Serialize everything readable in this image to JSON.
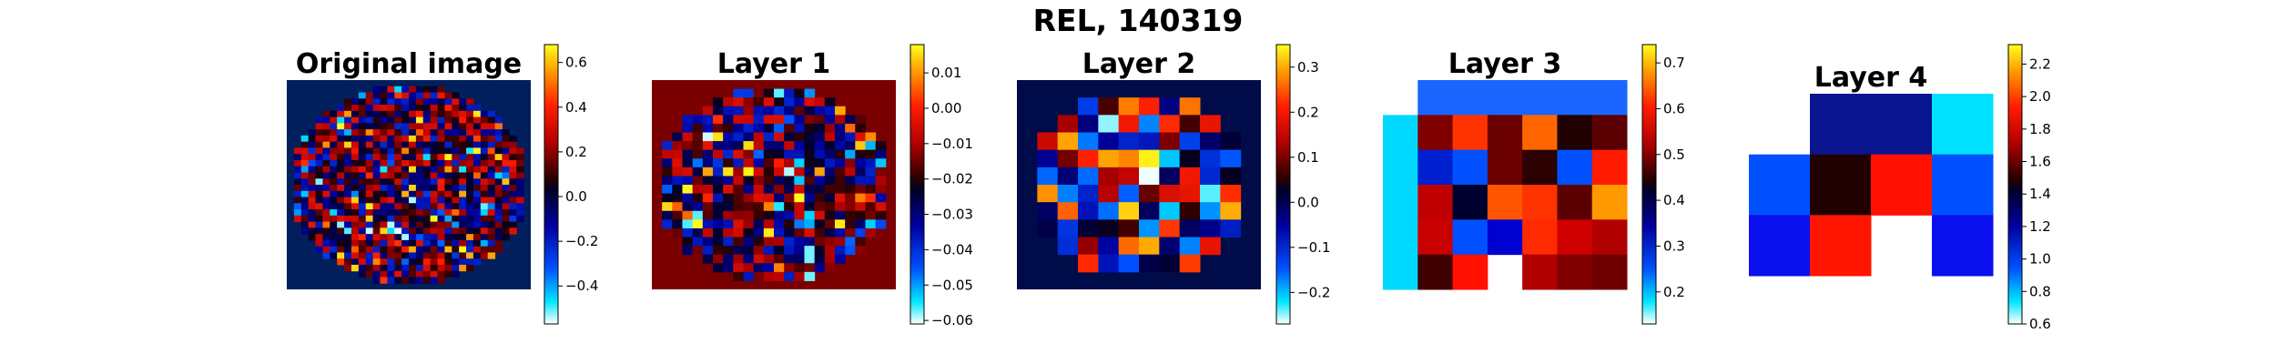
{
  "chart_data": {
    "suptitle": "REL, 140319",
    "panels": [
      {
        "type": "heatmap",
        "title": "Original image",
        "colormap": "flag",
        "grid": false,
        "background": "#001f5c",
        "cbar": {
          "vmin": -0.57,
          "vmax": 0.68,
          "ticks": [
            -0.4,
            -0.2,
            0.0,
            0.2,
            0.4,
            0.6
          ],
          "tick_labels": [
            "−0.4",
            "−0.2",
            "0.0",
            "0.2",
            "0.4",
            "0.6"
          ]
        },
        "mask": "ellipse",
        "rows": 34,
        "cols": 34,
        "seed": 11,
        "pixelated": true
      },
      {
        "type": "heatmap",
        "title": "Layer 1",
        "colormap": "flag",
        "grid": false,
        "background": "#7a0000",
        "cbar": {
          "vmin": -0.061,
          "vmax": 0.018,
          "ticks": [
            -0.06,
            -0.05,
            -0.04,
            -0.03,
            -0.02,
            -0.01,
            0.0,
            0.01
          ],
          "tick_labels": [
            "−0.06",
            "−0.05",
            "−0.04",
            "−0.03",
            "−0.02",
            "−0.01",
            "0.00",
            "0.01"
          ]
        },
        "mask": "ellipse",
        "rows": 24,
        "cols": 24,
        "seed": 5,
        "pixelated": true
      },
      {
        "type": "heatmap",
        "title": "Layer 2",
        "colormap": "flag",
        "grid": false,
        "background": "#000c4a",
        "cbar": {
          "vmin": -0.27,
          "vmax": 0.35,
          "ticks": [
            -0.2,
            -0.1,
            0.0,
            0.1,
            0.2,
            0.3
          ],
          "tick_labels": [
            "−0.2",
            "−0.1",
            "0.0",
            "0.1",
            "0.2",
            "0.3"
          ]
        },
        "mask": "ellipse",
        "rows": 12,
        "cols": 12,
        "seed": 3,
        "pixelated": true
      },
      {
        "type": "heatmap",
        "title": "Layer 3",
        "colormap": "flag",
        "grid": false,
        "background": "#ffffff",
        "cbar": {
          "vmin": 0.13,
          "vmax": 0.74,
          "ticks": [
            0.2,
            0.3,
            0.4,
            0.5,
            0.6,
            0.7
          ],
          "tick_labels": [
            "0.2",
            "0.3",
            "0.4",
            "0.5",
            "0.6",
            "0.7"
          ]
        },
        "rows": 6,
        "cols": 7,
        "colors": [
          [
            null,
            "#1a66ff",
            "#1a66ff",
            "#1a66ff",
            "#1a66ff",
            "#1a66ff",
            "#1a66ff"
          ],
          [
            "#00d8ff",
            "#800000",
            "#ff3300",
            "#6a0000",
            "#ff6600",
            "#200000",
            "#5a0000"
          ],
          [
            "#00d8ff",
            "#0020d0",
            "#0050ff",
            "#6a0000",
            "#2a0000",
            "#0050ff",
            "#ff1a00"
          ],
          [
            "#00d8ff",
            "#c00000",
            "#000030",
            "#ff5500",
            "#ff3300",
            "#5a0000",
            "#ff9900"
          ],
          [
            "#00d8ff",
            "#c80000",
            "#0050ff",
            "#0000d0",
            "#ff2a00",
            "#d00000",
            "#b00000"
          ],
          [
            "#00d8ff",
            "#400000",
            "#ff1000",
            null,
            "#b00000",
            "#800000",
            "#700000"
          ]
        ]
      },
      {
        "type": "heatmap",
        "title": "Layer 4",
        "colormap": "flag",
        "grid": false,
        "background": "#ffffff",
        "cbar": {
          "vmin": 0.6,
          "vmax": 2.32,
          "ticks": [
            0.6,
            0.8,
            1.0,
            1.2,
            1.4,
            1.6,
            1.8,
            2.0,
            2.2
          ],
          "tick_labels": [
            "0.6",
            "0.8",
            "1.0",
            "1.2",
            "1.4",
            "1.6",
            "1.8",
            "2.0",
            "2.2"
          ]
        },
        "rows": 3,
        "cols": 4,
        "colors": [
          [
            null,
            "#0a1690",
            "#0a1690",
            "#00e0ff"
          ],
          [
            "#0050ff",
            "#200000",
            "#ff1000",
            "#0050ff"
          ],
          [
            "#0a10ee",
            "#ff1500",
            null,
            "#0a10ee"
          ]
        ]
      }
    ]
  }
}
